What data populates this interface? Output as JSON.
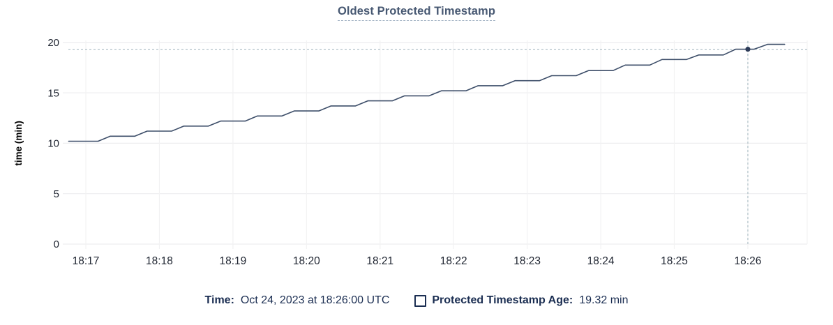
{
  "header": {
    "title": "Oldest Protected Timestamp"
  },
  "tooltip_legend": {
    "time_label": "Time:",
    "time_value": "Oct 24, 2023 at 18:26:00 UTC",
    "series_label": "Protected Timestamp Age:",
    "series_value": "19.32 min",
    "checkbox_icon": "checkbox-unchecked-icon"
  },
  "colors": {
    "line": "#3d4e69",
    "hover_dot": "#2c3b58",
    "crosshair": "#a9bbc3",
    "grid_h": "#ededef",
    "grid_v": "#f2f2f3",
    "axis_text": "#1e2430",
    "title_text": "#475872",
    "legend_text": "#1b2e52"
  },
  "chart_data": {
    "type": "line",
    "title": "Oldest Protected Timestamp",
    "xlabel": "",
    "ylabel": "time (min)",
    "ylim": [
      0,
      20
    ],
    "y_ticks": [
      0,
      5,
      10,
      15,
      20
    ],
    "grid": true,
    "legend_position": "bottom",
    "x_axis_note": "seconds relative to 18:17:00 on Oct 24, 2023 (UTC)",
    "x_ticks": [
      {
        "t": 0,
        "label": "18:17"
      },
      {
        "t": 60,
        "label": "18:18"
      },
      {
        "t": 120,
        "label": "18:19"
      },
      {
        "t": 180,
        "label": "18:20"
      },
      {
        "t": 240,
        "label": "18:21"
      },
      {
        "t": 300,
        "label": "18:22"
      },
      {
        "t": 360,
        "label": "18:23"
      },
      {
        "t": 420,
        "label": "18:24"
      },
      {
        "t": 480,
        "label": "18:25"
      },
      {
        "t": 540,
        "label": "18:26"
      }
    ],
    "series": [
      {
        "name": "Protected Timestamp Age",
        "unit": "min",
        "points": [
          [
            -14,
            10.2
          ],
          [
            10,
            10.2
          ],
          [
            20,
            10.7
          ],
          [
            40,
            10.7
          ],
          [
            50,
            11.2
          ],
          [
            70,
            11.2
          ],
          [
            80,
            11.7
          ],
          [
            100,
            11.7
          ],
          [
            110,
            12.2
          ],
          [
            130,
            12.2
          ],
          [
            140,
            12.7
          ],
          [
            160,
            12.7
          ],
          [
            170,
            13.2
          ],
          [
            190,
            13.2
          ],
          [
            200,
            13.7
          ],
          [
            220,
            13.7
          ],
          [
            230,
            14.2
          ],
          [
            250,
            14.2
          ],
          [
            260,
            14.7
          ],
          [
            280,
            14.7
          ],
          [
            290,
            15.2
          ],
          [
            310,
            15.2
          ],
          [
            320,
            15.7
          ],
          [
            340,
            15.7
          ],
          [
            350,
            16.2
          ],
          [
            370,
            16.2
          ],
          [
            380,
            16.7
          ],
          [
            400,
            16.7
          ],
          [
            410,
            17.2
          ],
          [
            430,
            17.2
          ],
          [
            440,
            17.75
          ],
          [
            460,
            17.75
          ],
          [
            470,
            18.3
          ],
          [
            490,
            18.3
          ],
          [
            500,
            18.75
          ],
          [
            520,
            18.75
          ],
          [
            530,
            19.32
          ],
          [
            545,
            19.32
          ],
          [
            556,
            19.8
          ],
          [
            570,
            19.8
          ]
        ]
      }
    ],
    "hover": {
      "t": 540,
      "value": 19.32,
      "time_label": "Oct 24, 2023 at 18:26:00 UTC",
      "value_label": "19.32 min"
    }
  }
}
